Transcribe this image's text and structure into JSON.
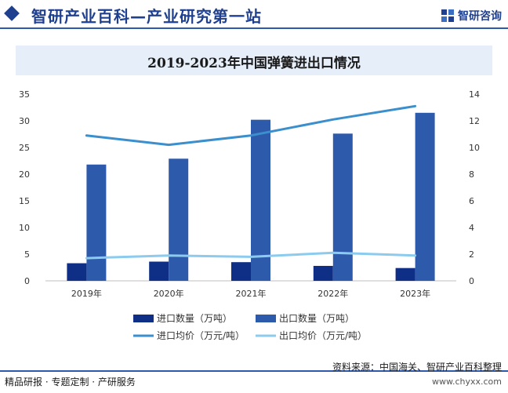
{
  "header": {
    "site_title": "智研产业百科—产业研究第一站",
    "brand": "智研咨询"
  },
  "chart_data": {
    "type": "bar",
    "title": "2019-2023年中国弹簧进出口情况",
    "categories": [
      "2019年",
      "2020年",
      "2021年",
      "2022年",
      "2023年"
    ],
    "series": [
      {
        "name": "进口数量（万吨）",
        "type": "bar",
        "axis": "left",
        "color": "#0f2f86",
        "values": [
          3.3,
          3.6,
          3.5,
          2.8,
          2.4
        ]
      },
      {
        "name": "出口数量（万吨）",
        "type": "bar",
        "axis": "left",
        "color": "#2e5aac",
        "values": [
          21.8,
          22.9,
          30.2,
          27.6,
          31.5
        ]
      },
      {
        "name": "进口均价（万元/吨）",
        "type": "line",
        "axis": "right",
        "color": "#3a8fcc",
        "values": [
          10.9,
          10.2,
          10.9,
          12.1,
          13.1
        ]
      },
      {
        "name": "出口均价（万元/吨）",
        "type": "line",
        "axis": "right",
        "color": "#8ccbee",
        "values": [
          1.7,
          1.9,
          1.8,
          2.1,
          1.9
        ]
      }
    ],
    "ylim_left": [
      0,
      35
    ],
    "yticks_left": [
      "0",
      "5",
      "10",
      "15",
      "20",
      "25",
      "30",
      "35"
    ],
    "ylim_right": [
      0,
      14
    ],
    "yticks_right": [
      "0",
      "2",
      "4",
      "6",
      "8",
      "10",
      "12",
      "14"
    ],
    "grid": false,
    "legend_position": "bottom"
  },
  "footer": {
    "services": "精品研报 · 专题定制 · 产研服务",
    "source": "资料来源：中国海关、智研产业百科整理",
    "url": "www.chyxx.com"
  }
}
